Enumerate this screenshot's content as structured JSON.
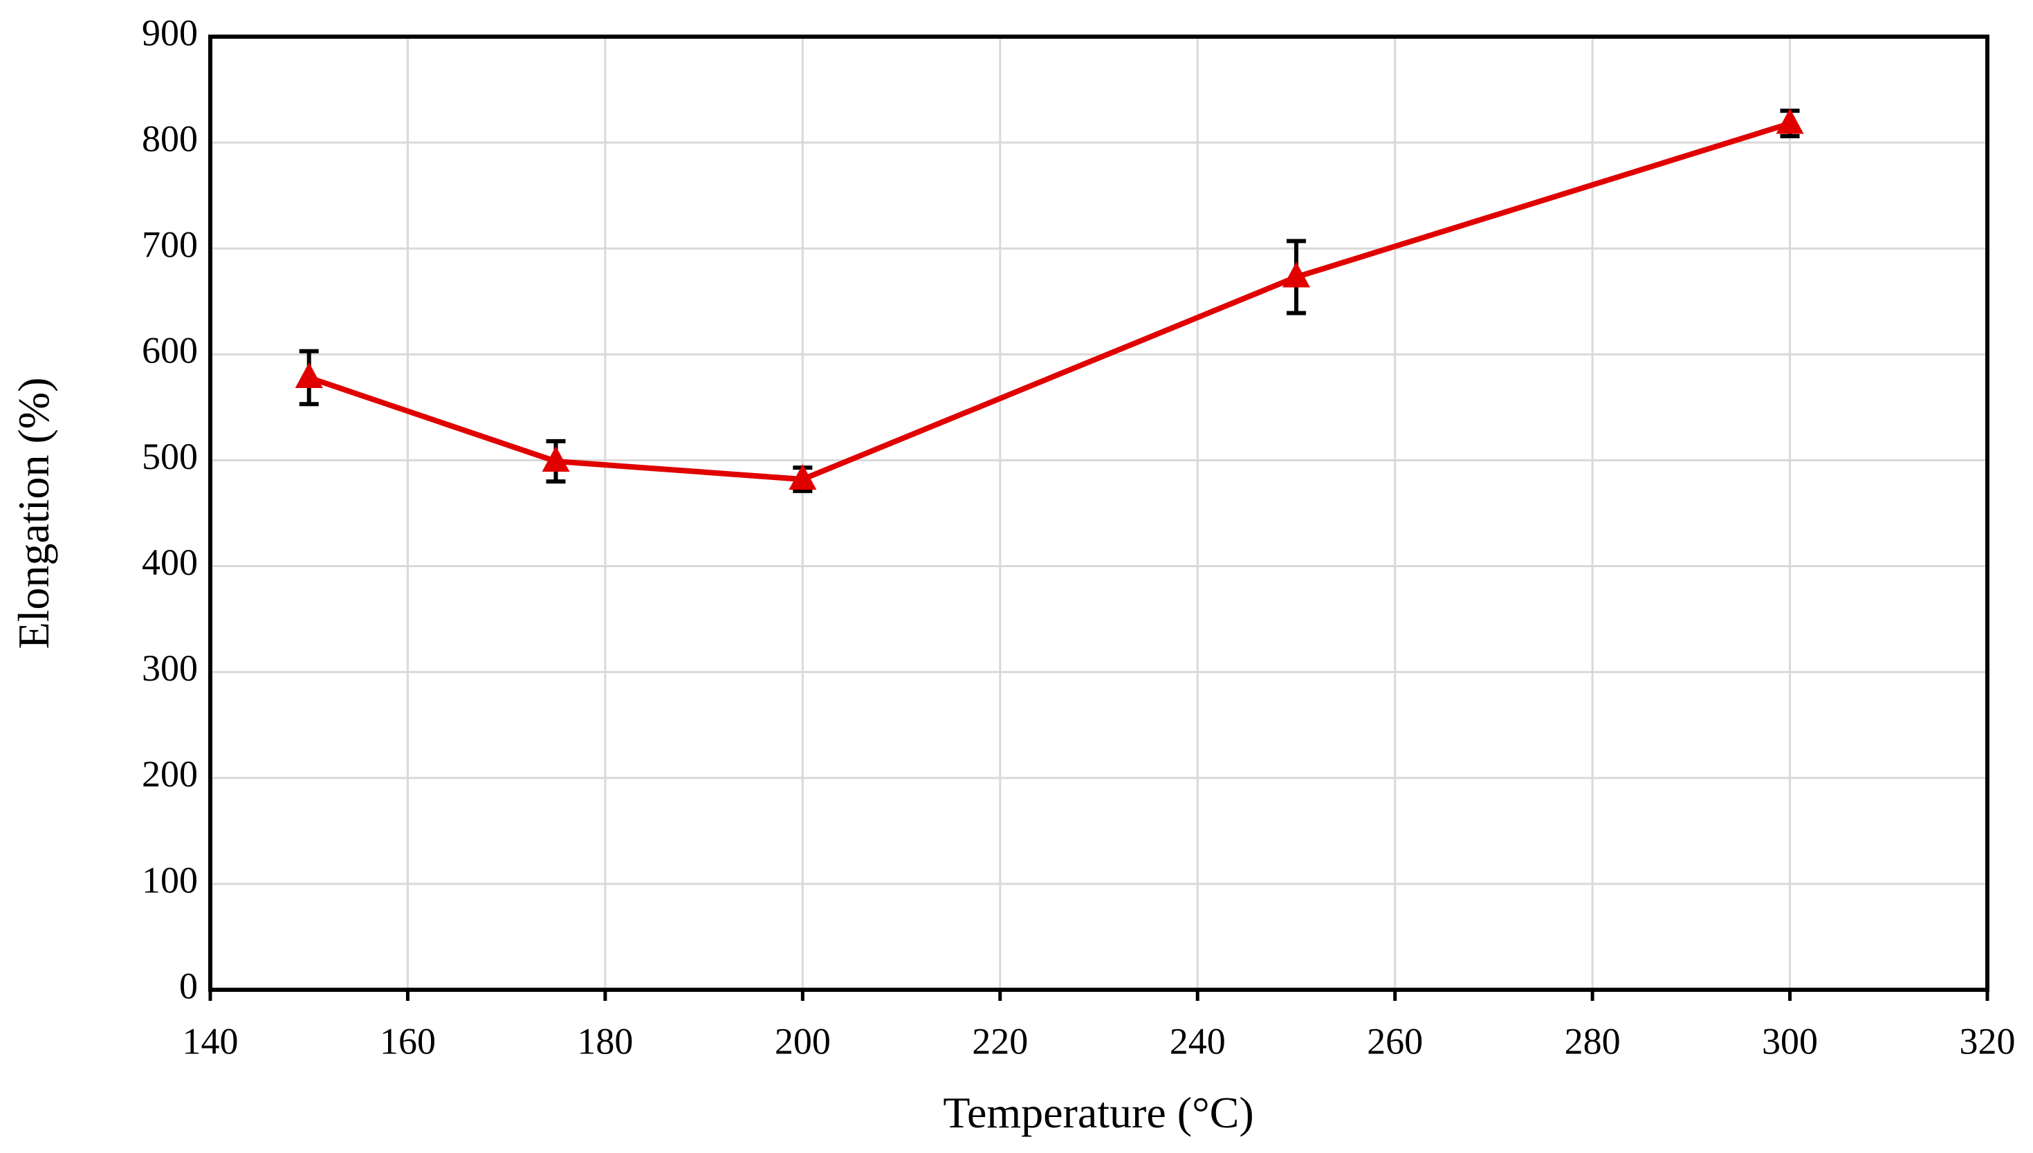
{
  "chart_data": {
    "type": "line",
    "x_label": "Temperature (°C)",
    "y_label": "Elongation (%)",
    "x": [
      150,
      175,
      200,
      250,
      300
    ],
    "series": [
      {
        "color": "#e00000",
        "values": [
          578,
          499,
          482,
          673,
          818
        ],
        "errors": [
          25,
          19,
          11,
          34,
          12
        ]
      }
    ],
    "xlim": [
      140,
      320
    ],
    "xticks": [
      140,
      160,
      180,
      200,
      220,
      240,
      260,
      280,
      300,
      320
    ],
    "ylim": [
      0,
      900
    ],
    "yticks": [
      0,
      100,
      200,
      300,
      400,
      500,
      600,
      700,
      800,
      900
    ],
    "grid": true
  }
}
